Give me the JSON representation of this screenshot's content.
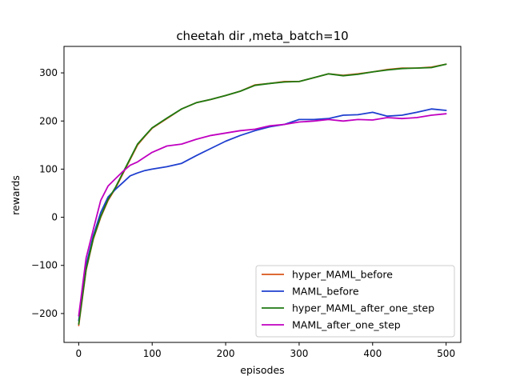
{
  "chart_data": {
    "type": "line",
    "title": "cheetah dir ,meta_batch=10",
    "xlabel": "episodes",
    "ylabel": "rewards",
    "xlim": [
      -20,
      520
    ],
    "ylim": [
      -260,
      355
    ],
    "xticks": [
      0,
      100,
      200,
      300,
      400,
      500
    ],
    "yticks": [
      -200,
      -100,
      0,
      100,
      200,
      300
    ],
    "xtick_labels": [
      "0",
      "100",
      "200",
      "300",
      "400",
      "500"
    ],
    "ytick_labels": [
      "−200",
      "−100",
      "0",
      "100",
      "200",
      "300"
    ],
    "grid": false,
    "legend_position": "lower-right",
    "series": [
      {
        "name": "hyper_MAML_before",
        "color": "#d9541a",
        "x": [
          0,
          10,
          20,
          30,
          40,
          50,
          60,
          70,
          80,
          90,
          100,
          120,
          140,
          160,
          180,
          200,
          220,
          240,
          260,
          280,
          300,
          320,
          340,
          360,
          380,
          400,
          420,
          440,
          460,
          480,
          500
        ],
        "values": [
          -225,
          -110,
          -45,
          0,
          35,
          60,
          90,
          120,
          150,
          168,
          185,
          205,
          225,
          238,
          245,
          253,
          262,
          275,
          278,
          282,
          282,
          290,
          298,
          295,
          298,
          302,
          307,
          310,
          310,
          312,
          318
        ]
      },
      {
        "name": "MAML_before",
        "color": "#1f3fcf",
        "x": [
          0,
          10,
          20,
          30,
          40,
          50,
          60,
          70,
          80,
          90,
          100,
          120,
          140,
          160,
          180,
          200,
          220,
          240,
          260,
          280,
          300,
          320,
          340,
          360,
          380,
          400,
          420,
          440,
          460,
          480,
          500
        ],
        "values": [
          -215,
          -100,
          -38,
          10,
          42,
          58,
          72,
          86,
          92,
          97,
          100,
          105,
          112,
          128,
          143,
          158,
          170,
          180,
          188,
          193,
          203,
          203,
          205,
          212,
          213,
          218,
          210,
          212,
          218,
          225,
          222
        ]
      },
      {
        "name": "hyper_MAML_after_one_step",
        "color": "#1e7a12",
        "x": [
          0,
          10,
          20,
          30,
          40,
          50,
          60,
          70,
          80,
          90,
          100,
          120,
          140,
          160,
          180,
          200,
          220,
          240,
          260,
          280,
          300,
          320,
          340,
          360,
          380,
          400,
          420,
          440,
          460,
          480,
          500
        ],
        "values": [
          -222,
          -108,
          -43,
          2,
          37,
          62,
          92,
          122,
          152,
          169,
          186,
          206,
          225,
          238,
          245,
          253,
          262,
          274,
          278,
          281,
          282,
          290,
          298,
          294,
          297,
          302,
          306,
          309,
          310,
          311,
          318
        ]
      },
      {
        "name": "MAML_after_one_step",
        "color": "#c000c0",
        "x": [
          0,
          10,
          20,
          30,
          40,
          50,
          60,
          70,
          80,
          90,
          100,
          120,
          140,
          160,
          180,
          200,
          220,
          240,
          260,
          280,
          300,
          320,
          340,
          360,
          380,
          400,
          420,
          440,
          460,
          480,
          500
        ],
        "values": [
          -205,
          -85,
          -25,
          35,
          65,
          80,
          95,
          108,
          115,
          125,
          135,
          148,
          152,
          162,
          170,
          175,
          180,
          183,
          190,
          193,
          198,
          200,
          203,
          200,
          203,
          202,
          207,
          205,
          207,
          212,
          215
        ]
      }
    ]
  }
}
